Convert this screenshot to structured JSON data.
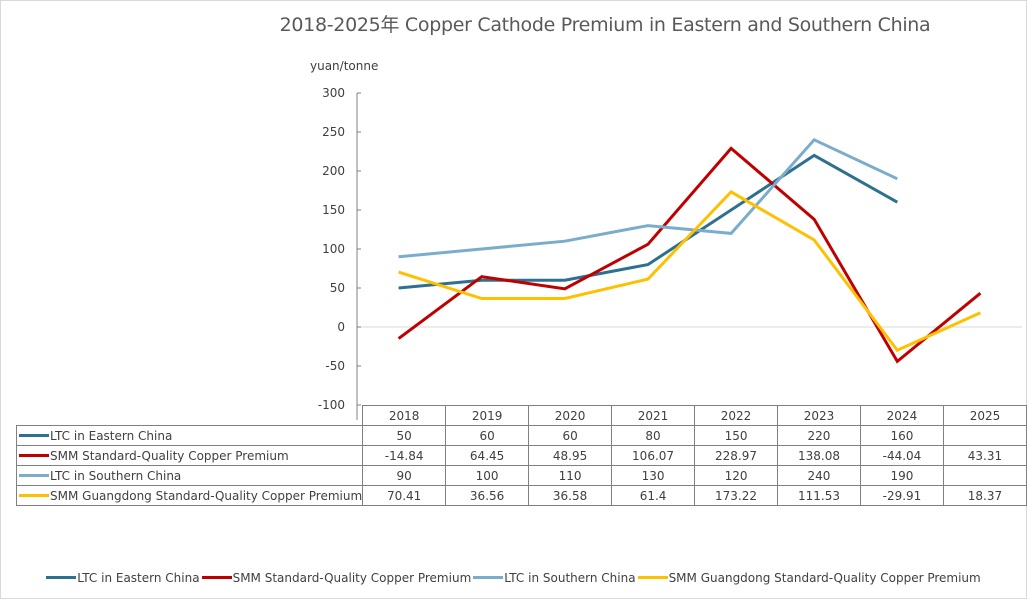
{
  "chart_data": {
    "type": "line",
    "title": "2018-2025年 Copper Cathode Premium in Eastern and Southern China",
    "ylabel": "yuan/tonne",
    "xlabel": "",
    "ylim": [
      -100,
      300
    ],
    "yticks": [
      "300",
      "250",
      "200",
      "150",
      "100",
      "50",
      "0",
      "-50",
      "-100"
    ],
    "ytick_values": [
      300,
      250,
      200,
      150,
      100,
      50,
      0,
      -50,
      -100
    ],
    "categories": [
      "2018",
      "2019",
      "2020",
      "2021",
      "2022",
      "2023",
      "2024",
      "2025"
    ],
    "grid": false,
    "legend_position": "bottom",
    "series": [
      {
        "name": "LTC in Eastern China",
        "color": "#2e7090",
        "values": [
          50,
          60,
          60,
          80,
          150,
          220,
          160,
          null
        ],
        "labels": [
          "50",
          "60",
          "60",
          "80",
          "150",
          "220",
          "160",
          ""
        ]
      },
      {
        "name": "SMM Standard-Quality Copper Premium",
        "color": "#c00000",
        "values": [
          -14.84,
          64.45,
          48.95,
          106.07,
          228.97,
          138.08,
          -44.04,
          43.31
        ],
        "labels": [
          "-14.84",
          "64.45",
          "48.95",
          "106.07",
          "228.97",
          "138.08",
          "-44.04",
          "43.31"
        ]
      },
      {
        "name": "LTC in Southern China",
        "color": "#7aadcb",
        "values": [
          90,
          100,
          110,
          130,
          120,
          240,
          190,
          null
        ],
        "labels": [
          "90",
          "100",
          "110",
          "130",
          "120",
          "240",
          "190",
          ""
        ]
      },
      {
        "name": "SMM Guangdong Standard-Quality Copper Premium",
        "color": "#ffc000",
        "values": [
          70.41,
          36.56,
          36.58,
          61.4,
          173.22,
          111.53,
          -29.91,
          18.37
        ],
        "labels": [
          "70.41",
          "36.56",
          "36.58",
          "61.4",
          "173.22",
          "111.53",
          "-29.91",
          "18.37"
        ]
      }
    ]
  }
}
